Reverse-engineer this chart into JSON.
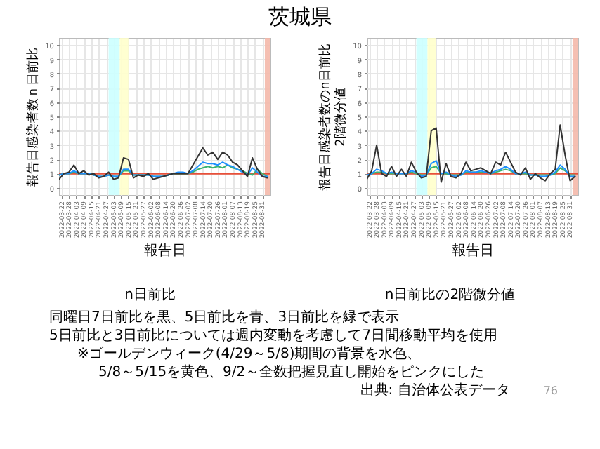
{
  "chart_data": [
    {
      "type": "line",
      "title": "茨城県",
      "subtitle": "n日前比",
      "xlabel": "報告日",
      "ylabel": "報告日感染者数ｎ日前比",
      "x": [
        "2022-03-20",
        "2022-03-24",
        "2022-03-28",
        "2022-04-01",
        "2022-04-05",
        "2022-04-09",
        "2022-04-13",
        "2022-04-17",
        "2022-04-21",
        "2022-04-25",
        "2022-04-29",
        "2022-05-03",
        "2022-05-07",
        "2022-05-11",
        "2022-05-15",
        "2022-05-19",
        "2022-05-23",
        "2022-05-27",
        "2022-05-31",
        "2022-06-04",
        "2022-06-08",
        "2022-06-12",
        "2022-06-16",
        "2022-06-20",
        "2022-06-24",
        "2022-06-28",
        "2022-07-02",
        "2022-07-06",
        "2022-07-10",
        "2022-07-14",
        "2022-07-18",
        "2022-07-22",
        "2022-07-26",
        "2022-07-30",
        "2022-08-03",
        "2022-08-07",
        "2022-08-11",
        "2022-08-15",
        "2022-08-19",
        "2022-08-23",
        "2022-08-27",
        "2022-08-31",
        "2022-09-04"
      ],
      "series": [
        {
          "color": "#3cb371",
          "values": [
            0.9,
            1.0,
            1.0,
            1.1,
            1.0,
            1.0,
            1.0,
            0.9,
            0.8,
            0.8,
            0.9,
            0.8,
            0.8,
            1.2,
            1.2,
            0.9,
            0.9,
            0.9,
            0.9,
            0.8,
            0.8,
            0.8,
            0.9,
            1.0,
            1.0,
            1.0,
            1.0,
            1.1,
            1.3,
            1.4,
            1.5,
            1.4,
            1.5,
            1.4,
            1.6,
            1.4,
            1.3,
            1.2,
            1.0,
            0.9,
            1.3,
            1.0,
            0.8
          ]
        },
        {
          "color": "#1e90ff",
          "values": [
            0.9,
            1.0,
            1.0,
            1.2,
            1.0,
            1.0,
            1.0,
            0.9,
            0.8,
            0.8,
            0.9,
            0.8,
            0.8,
            1.3,
            1.3,
            0.9,
            0.9,
            0.9,
            0.9,
            0.8,
            0.8,
            0.8,
            0.9,
            1.0,
            1.1,
            1.1,
            1.0,
            1.2,
            1.5,
            1.8,
            1.7,
            1.7,
            1.6,
            1.8,
            1.6,
            1.5,
            1.3,
            1.1,
            0.9,
            1.4,
            1.1,
            0.8,
            0.8
          ]
        },
        {
          "color": "#333333",
          "values": [
            0.6,
            1.0,
            1.1,
            1.6,
            1.0,
            1.2,
            0.9,
            1.0,
            0.7,
            0.8,
            1.1,
            0.6,
            0.7,
            2.1,
            2.0,
            0.7,
            0.9,
            0.8,
            1.0,
            0.6,
            0.7,
            0.8,
            0.9,
            1.0,
            1.0,
            1.0,
            1.0,
            1.6,
            2.2,
            2.8,
            2.3,
            2.5,
            2.0,
            2.5,
            2.3,
            1.8,
            1.6,
            1.2,
            0.8,
            2.1,
            1.3,
            0.8,
            0.7
          ]
        }
      ],
      "xlim": [
        "2022-03-20",
        "2022-09-06"
      ],
      "xticks": [
        "2022-03-22",
        "2022-03-28",
        "2022-04-03",
        "2022-04-09",
        "2022-04-15",
        "2022-04-21",
        "2022-04-27",
        "2022-05-03",
        "2022-05-09",
        "2022-05-15",
        "2022-05-21",
        "2022-05-27",
        "2022-06-02",
        "2022-06-08",
        "2022-06-14",
        "2022-06-20",
        "2022-06-26",
        "2022-07-02",
        "2022-07-08",
        "2022-07-14",
        "2022-07-20",
        "2022-07-26",
        "2022-08-01",
        "2022-08-07",
        "2022-08-13",
        "2022-08-19",
        "2022-08-25",
        "2022-08-31"
      ],
      "ylim": [
        -0.5,
        10.5
      ],
      "yticks": [
        0,
        1,
        2,
        3,
        4,
        5,
        6,
        7,
        8,
        9,
        10
      ],
      "grid": true,
      "bands": [
        {
          "axis": "x",
          "from": "2022-04-29",
          "to": "2022-05-08",
          "color": "#ccffff"
        },
        {
          "axis": "x",
          "from": "2022-05-08",
          "to": "2022-05-15",
          "color": "#ffffcc"
        },
        {
          "axis": "x",
          "from": "2022-09-02",
          "to": "2022-09-06",
          "color": "#f4b8aa"
        }
      ],
      "ref_lines": [
        {
          "axis": "y",
          "value": 1,
          "color": "#e8503a"
        }
      ],
      "annotations": [
        "同曜日7日前比を黒、5日前比を青、3日前比を緑で表示",
        "5日前比と3日前比については週内変動を考慮して7日間移動平均を使用",
        "※ゴールデンウィーク(4/29～5/8)期間の背景を水色、",
        "5/8～5/15を黄色、9/2～全数把握見直し開始をピンクにした",
        "出典: 自治体公表データ",
        "76"
      ]
    },
    {
      "type": "line",
      "subtitle": "n日前比の2階微分値",
      "xlabel": "報告日",
      "ylabel": "報告日感染者数のn日前比\n2階微分値",
      "x": [
        "2022-03-20",
        "2022-03-24",
        "2022-03-28",
        "2022-04-01",
        "2022-04-05",
        "2022-04-09",
        "2022-04-13",
        "2022-04-17",
        "2022-04-21",
        "2022-04-25",
        "2022-04-29",
        "2022-05-03",
        "2022-05-07",
        "2022-05-11",
        "2022-05-15",
        "2022-05-19",
        "2022-05-23",
        "2022-05-27",
        "2022-05-31",
        "2022-06-04",
        "2022-06-08",
        "2022-06-12",
        "2022-06-16",
        "2022-06-20",
        "2022-06-24",
        "2022-06-28",
        "2022-07-02",
        "2022-07-06",
        "2022-07-10",
        "2022-07-14",
        "2022-07-18",
        "2022-07-22",
        "2022-07-26",
        "2022-07-30",
        "2022-08-03",
        "2022-08-07",
        "2022-08-11",
        "2022-08-15",
        "2022-08-19",
        "2022-08-23",
        "2022-08-27",
        "2022-08-31",
        "2022-09-04"
      ],
      "series": [
        {
          "color": "#3cb371",
          "values": [
            0.9,
            1.0,
            1.1,
            1.1,
            1.0,
            1.0,
            1.0,
            1.0,
            1.0,
            1.1,
            1.0,
            0.9,
            0.9,
            1.4,
            1.5,
            1.0,
            1.0,
            0.9,
            0.9,
            0.9,
            1.1,
            1.1,
            1.1,
            1.1,
            1.1,
            1.0,
            1.1,
            1.2,
            1.3,
            1.2,
            1.0,
            1.0,
            1.0,
            0.9,
            0.9,
            0.9,
            0.9,
            0.9,
            1.0,
            1.4,
            1.2,
            0.9,
            0.9
          ]
        },
        {
          "color": "#1e90ff",
          "values": [
            0.9,
            1.0,
            1.3,
            1.2,
            1.0,
            1.1,
            1.0,
            1.0,
            1.0,
            1.2,
            1.1,
            0.8,
            0.9,
            1.7,
            1.9,
            1.0,
            1.1,
            0.9,
            0.8,
            0.9,
            1.2,
            1.1,
            1.1,
            1.2,
            1.1,
            1.0,
            1.2,
            1.3,
            1.5,
            1.3,
            1.0,
            1.0,
            1.1,
            0.9,
            0.9,
            0.8,
            0.8,
            0.9,
            1.1,
            1.6,
            1.3,
            0.8,
            0.8
          ]
        },
        {
          "color": "#333333",
          "values": [
            0.6,
            1.2,
            3.0,
            1.0,
            0.8,
            1.5,
            0.8,
            1.3,
            0.8,
            1.8,
            1.1,
            0.7,
            0.8,
            4.0,
            4.2,
            0.4,
            1.7,
            0.8,
            0.7,
            1.0,
            1.8,
            1.2,
            1.3,
            1.4,
            1.2,
            1.0,
            1.8,
            1.6,
            2.5,
            1.8,
            1.1,
            0.9,
            1.4,
            0.6,
            1.0,
            0.7,
            0.5,
            1.0,
            1.3,
            4.4,
            2.3,
            0.5,
            0.8
          ]
        }
      ],
      "xlim": [
        "2022-03-20",
        "2022-09-06"
      ],
      "xticks": [
        "2022-03-22",
        "2022-03-28",
        "2022-04-03",
        "2022-04-09",
        "2022-04-15",
        "2022-04-21",
        "2022-04-27",
        "2022-05-03",
        "2022-05-09",
        "2022-05-15",
        "2022-05-21",
        "2022-05-27",
        "2022-06-02",
        "2022-06-08",
        "2022-06-14",
        "2022-06-20",
        "2022-06-26",
        "2022-07-02",
        "2022-07-08",
        "2022-07-14",
        "2022-07-20",
        "2022-07-26",
        "2022-08-01",
        "2022-08-07",
        "2022-08-13",
        "2022-08-19",
        "2022-08-25",
        "2022-08-31"
      ],
      "ylim": [
        -0.5,
        10.5
      ],
      "yticks": [
        0,
        1,
        2,
        3,
        4,
        5,
        6,
        7,
        8,
        9,
        10
      ],
      "grid": true,
      "bands": [
        {
          "axis": "x",
          "from": "2022-04-29",
          "to": "2022-05-08",
          "color": "#ccffff"
        },
        {
          "axis": "x",
          "from": "2022-05-08",
          "to": "2022-05-15",
          "color": "#ffffcc"
        },
        {
          "axis": "x",
          "from": "2022-09-02",
          "to": "2022-09-06",
          "color": "#f4b8aa"
        }
      ],
      "ref_lines": [
        {
          "axis": "y",
          "value": 1,
          "color": "#e8503a"
        }
      ]
    }
  ]
}
